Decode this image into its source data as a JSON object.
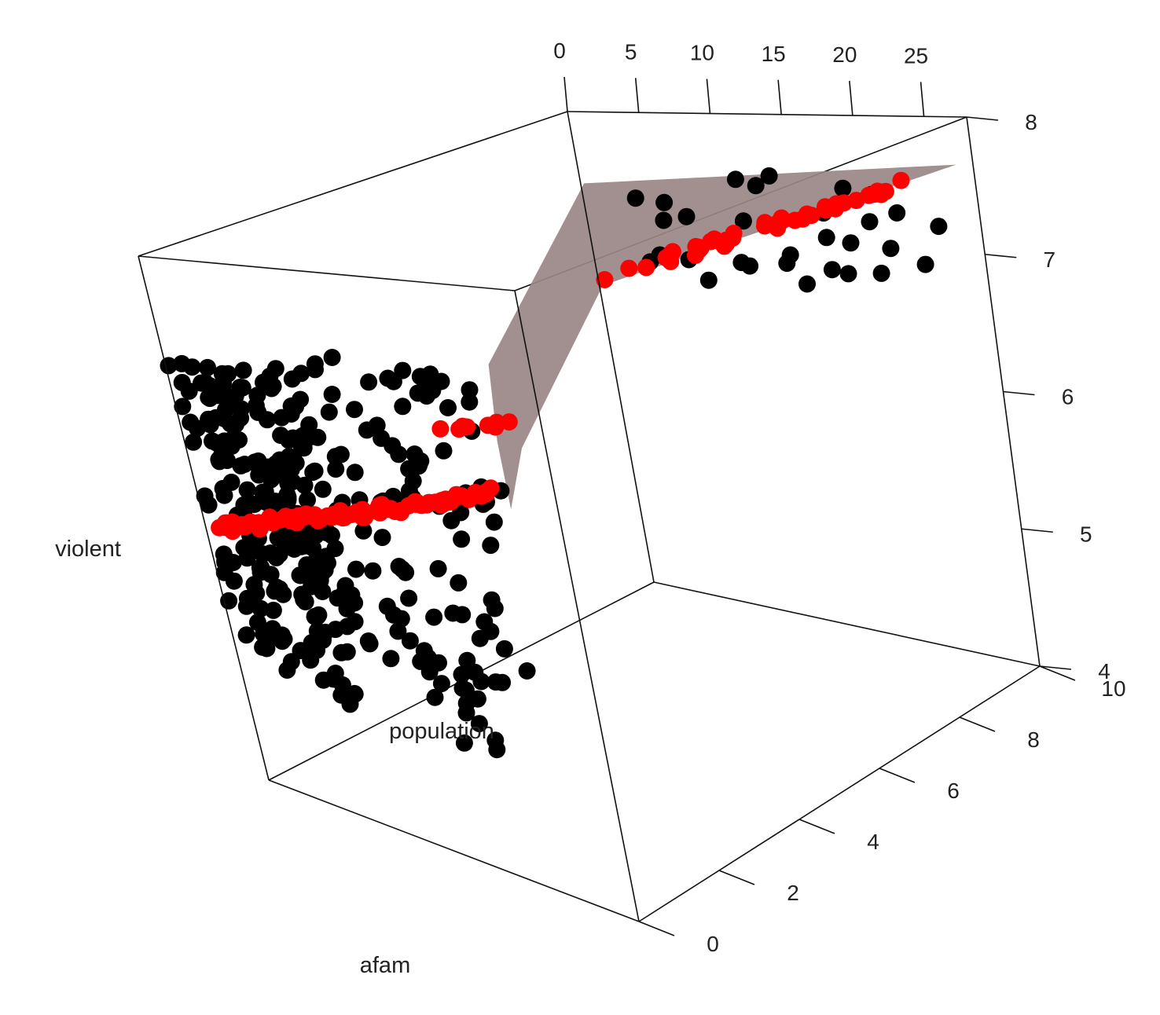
{
  "chart_data": {
    "type": "scatter",
    "projection": "3d",
    "axes": {
      "x": {
        "label": "afam",
        "range": [
          0,
          10
        ],
        "ticks": [
          "0",
          "2",
          "4",
          "6",
          "8",
          "10"
        ]
      },
      "y": {
        "label": "population",
        "range": [
          0,
          28
        ],
        "ticks": [
          "0",
          "5",
          "10",
          "15",
          "20",
          "25"
        ]
      },
      "z": {
        "label": "violent",
        "range": [
          4,
          8
        ],
        "ticks": [
          "4",
          "5",
          "6",
          "7",
          "8"
        ]
      }
    },
    "series": [
      {
        "kind": "points",
        "color": "#000000",
        "clusters": [
          {
            "x": [
              0,
              3
            ],
            "y": [
              0,
              1.5
            ],
            "z": [
              4.8,
              7.2
            ],
            "count": 220
          },
          {
            "x": [
              3,
              8
            ],
            "y": [
              0,
              1.5
            ],
            "z": [
              5.2,
              7.4
            ],
            "count": 110
          },
          {
            "x": [
              1,
              3
            ],
            "y": [
              8.5,
              9.5
            ],
            "z": [
              4.0,
              4.6
            ],
            "count": 14
          },
          {
            "x": [
              3,
              10
            ],
            "y": [
              21,
              27
            ],
            "z": [
              6.9,
              7.7
            ],
            "count": 30
          }
        ]
      },
      {
        "kind": "fitted",
        "color": "#ff0000",
        "clusters": [
          {
            "x": [
              0,
              8
            ],
            "y": [
              0,
              1.5
            ],
            "z": [
              5.9,
              6.6
            ],
            "count": 90
          },
          {
            "x": [
              3,
              5
            ],
            "y": [
              8.5,
              9.5
            ],
            "z": [
              6.4,
              6.55
            ],
            "count": 8
          },
          {
            "x": [
              3,
              10
            ],
            "y": [
              21,
              27
            ],
            "z": [
              7.0,
              7.7
            ],
            "count": 45
          }
        ]
      }
    ],
    "plane": {
      "color": "#9a8585",
      "opacity": 0.92
    },
    "grid": false,
    "legend": "none"
  }
}
